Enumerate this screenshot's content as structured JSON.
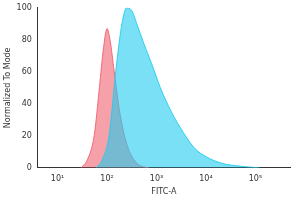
{
  "chart_data": {
    "type": "area",
    "x_label": "FITC-A",
    "y_label": "Normalized To Mode",
    "log": "x",
    "grid": false,
    "xlim": [
      4,
      500000
    ],
    "xticks": [
      {
        "value": 10,
        "label": "10¹"
      },
      {
        "value": 100,
        "label": "10²"
      },
      {
        "value": 1000,
        "label": "10³"
      },
      {
        "value": 10000,
        "label": "10⁴"
      },
      {
        "value": 100000,
        "label": "10⁵"
      }
    ],
    "ylim": [
      0,
      100
    ],
    "yticks": [
      0,
      20,
      40,
      60,
      80,
      100
    ],
    "series": [
      {
        "color": "#22ccee",
        "x": [
          60,
          80,
          110,
          150,
          200,
          250,
          320,
          400,
          550,
          800,
          1200,
          2000,
          3500,
          6000,
          10000,
          20000,
          50000,
          120000
        ],
        "values": [
          0,
          5,
          20,
          60,
          90,
          100,
          98,
          90,
          78,
          65,
          50,
          35,
          22,
          12,
          7,
          3,
          1,
          0
        ]
      },
      {
        "color": "#f06070",
        "x": [
          30,
          40,
          55,
          70,
          85,
          100,
          115,
          140,
          180,
          250,
          350,
          500,
          700
        ],
        "values": [
          0,
          5,
          20,
          50,
          75,
          87,
          80,
          60,
          35,
          15,
          5,
          1,
          0
        ]
      }
    ]
  }
}
